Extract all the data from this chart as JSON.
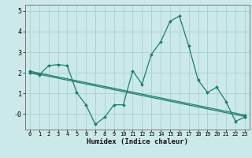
{
  "xlabel": "Humidex (Indice chaleur)",
  "xlim": [
    -0.5,
    23.5
  ],
  "ylim": [
    -0.75,
    5.3
  ],
  "yticks": [
    0,
    1,
    2,
    3,
    4,
    5
  ],
  "ytick_labels": [
    "-0",
    "1",
    "2",
    "3",
    "4",
    "5"
  ],
  "xticks": [
    0,
    1,
    2,
    3,
    4,
    5,
    6,
    7,
    8,
    9,
    10,
    11,
    12,
    13,
    14,
    15,
    16,
    17,
    18,
    19,
    20,
    21,
    22,
    23
  ],
  "bg_color": "#cce9e9",
  "grid_color": "#aad4d4",
  "line_color": "#1e7b6e",
  "line1_x": [
    0,
    1,
    2,
    3,
    4,
    5,
    6,
    7,
    8,
    9,
    10,
    11,
    12,
    13,
    14,
    15,
    16,
    17,
    18,
    19,
    20,
    21,
    22,
    23
  ],
  "line1_y": [
    2.0,
    1.9,
    2.35,
    2.4,
    2.35,
    1.05,
    0.45,
    -0.5,
    -0.15,
    0.45,
    0.45,
    2.1,
    1.45,
    2.9,
    3.5,
    4.5,
    4.75,
    3.3,
    1.65,
    1.05,
    1.3,
    0.6,
    -0.35,
    -0.15
  ],
  "line2_x": [
    0,
    23
  ],
  "line2_y": [
    2.08,
    -0.05
  ],
  "line3_x": [
    0,
    23
  ],
  "line3_y": [
    2.02,
    -0.12
  ]
}
